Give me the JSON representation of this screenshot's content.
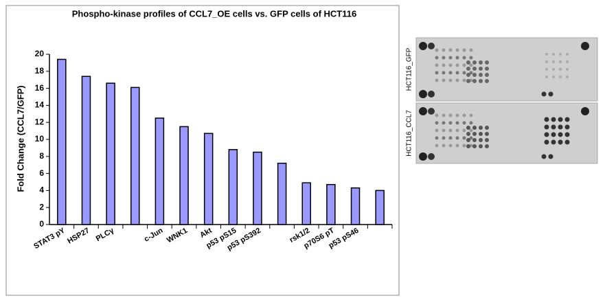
{
  "chart_data": {
    "type": "bar",
    "title": "Phospho-kinase profiles of CCL7_OE cells vs. GFP cells of HCT116",
    "y_label": "Fold Change (CCL7/GFP)",
    "categories": [
      "STAT3 pY",
      "HSP27",
      "PLCγ",
      null,
      "c-Jun",
      "WNK1",
      "Akt",
      "p53 pS15",
      "p53 pS392",
      null,
      "rsk1/2",
      "p70S6 pT",
      "p53 pS46",
      null
    ],
    "values": [
      19.4,
      17.4,
      16.6,
      16.1,
      12.5,
      11.5,
      10.7,
      8.8,
      8.5,
      7.2,
      4.9,
      4.7,
      4.3,
      4.0
    ],
    "color": "#9999ff",
    "ylim": [
      0,
      20
    ],
    "yticks": [
      0,
      2,
      4,
      6,
      8,
      10,
      12,
      14,
      16,
      18,
      20
    ],
    "grid": false
  },
  "blots": [
    {
      "label": "HCT116_GFP"
    },
    {
      "label": "HCT116_CCL7"
    }
  ]
}
